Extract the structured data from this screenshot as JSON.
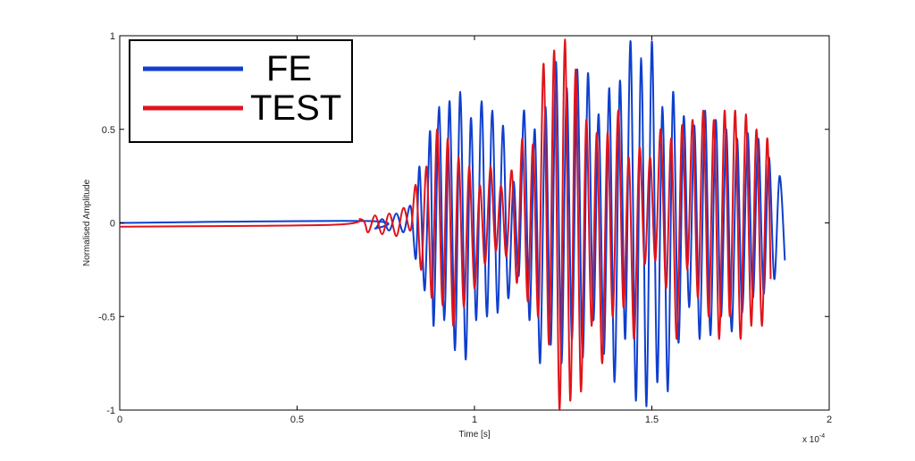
{
  "chart_data": {
    "type": "line",
    "title": "",
    "xlabel": "Time [s]",
    "ylabel": "Normalised Amplitude",
    "x_multiplier": "x 10",
    "x_multiplier_exponent": "-4",
    "xlim": [
      0,
      2
    ],
    "ylim": [
      -1,
      1
    ],
    "x_ticks": [
      0,
      0.5,
      1,
      1.5,
      2
    ],
    "x_tick_labels": [
      "0",
      "0.5",
      "1",
      "1.5",
      "2"
    ],
    "y_ticks": [
      -1,
      -0.5,
      0,
      0.5,
      1
    ],
    "y_tick_labels": [
      "-1",
      "-0.5",
      "0",
      "0.5",
      "1"
    ],
    "grid": false,
    "legend_position": "top-left",
    "series": [
      {
        "name": "FE",
        "color": "#0e3fcf",
        "x": [
          0,
          0.7,
          0.72,
          0.74,
          0.76,
          0.78,
          0.8,
          0.82,
          0.835,
          0.845,
          0.86,
          0.875,
          0.885,
          0.9,
          0.915,
          0.93,
          0.945,
          0.96,
          0.975,
          0.99,
          1.005,
          1.02,
          1.035,
          1.05,
          1.065,
          1.08,
          1.095,
          1.11,
          1.125,
          1.14,
          1.155,
          1.17,
          1.185,
          1.2,
          1.215,
          1.23,
          1.245,
          1.26,
          1.275,
          1.29,
          1.305,
          1.32,
          1.335,
          1.35,
          1.365,
          1.38,
          1.395,
          1.41,
          1.425,
          1.44,
          1.455,
          1.47,
          1.485,
          1.5,
          1.515,
          1.53,
          1.545,
          1.56,
          1.575,
          1.59,
          1.605,
          1.62,
          1.635,
          1.65,
          1.665,
          1.68,
          1.695,
          1.71,
          1.725,
          1.74,
          1.755,
          1.77,
          1.785,
          1.8,
          1.815,
          1.83,
          1.845,
          1.86,
          1.875
        ],
        "y": [
          0,
          0.01,
          -0.03,
          0.02,
          -0.04,
          0.05,
          -0.05,
          0.09,
          -0.19,
          0.3,
          -0.36,
          0.49,
          -0.55,
          0.62,
          -0.52,
          0.65,
          -0.68,
          0.7,
          -0.73,
          0.56,
          -0.52,
          0.65,
          -0.5,
          0.6,
          -0.48,
          0.52,
          -0.4,
          0.22,
          -0.28,
          0.6,
          -0.52,
          0.5,
          -0.75,
          0.62,
          -0.65,
          0.86,
          -0.75,
          0.72,
          -0.62,
          0.82,
          -0.72,
          0.8,
          -0.52,
          0.58,
          -0.7,
          0.72,
          -0.85,
          0.76,
          -0.62,
          0.97,
          -0.95,
          0.88,
          -0.98,
          0.97,
          -0.85,
          0.62,
          -0.9,
          0.7,
          -0.64,
          0.57,
          -0.45,
          0.52,
          -0.62,
          0.6,
          -0.6,
          0.55,
          -0.5,
          0.5,
          -0.58,
          0.45,
          -0.48,
          0.48,
          -0.4,
          0.45,
          -0.38,
          0.35,
          -0.3,
          0.25,
          -0.2
        ]
      },
      {
        "name": "TEST",
        "color": "#e0141b",
        "x": [
          0,
          0.6,
          0.68,
          0.7,
          0.72,
          0.74,
          0.76,
          0.78,
          0.8,
          0.82,
          0.835,
          0.85,
          0.865,
          0.88,
          0.895,
          0.91,
          0.925,
          0.94,
          0.955,
          0.97,
          0.985,
          1.0,
          1.015,
          1.03,
          1.045,
          1.06,
          1.075,
          1.09,
          1.105,
          1.12,
          1.135,
          1.15,
          1.165,
          1.18,
          1.195,
          1.21,
          1.225,
          1.24,
          1.255,
          1.27,
          1.285,
          1.3,
          1.315,
          1.33,
          1.345,
          1.36,
          1.375,
          1.39,
          1.405,
          1.42,
          1.435,
          1.45,
          1.465,
          1.48,
          1.495,
          1.51,
          1.525,
          1.54,
          1.555,
          1.57,
          1.585,
          1.6,
          1.615,
          1.63,
          1.645,
          1.66,
          1.675,
          1.69,
          1.705,
          1.72,
          1.735,
          1.75,
          1.765,
          1.78,
          1.795,
          1.81,
          1.825,
          1.835
        ],
        "y": [
          -0.02,
          -0.01,
          0.02,
          -0.05,
          0.04,
          -0.06,
          0.05,
          -0.07,
          0.08,
          -0.04,
          0.2,
          -0.25,
          0.3,
          -0.4,
          0.5,
          -0.44,
          0.45,
          -0.55,
          0.35,
          -0.45,
          0.3,
          -0.35,
          0.2,
          -0.22,
          0.3,
          -0.15,
          0.2,
          -0.18,
          0.28,
          -0.32,
          0.45,
          -0.42,
          0.42,
          -0.5,
          0.85,
          -0.65,
          0.92,
          -1.0,
          0.98,
          -0.95,
          0.82,
          -0.9,
          0.55,
          -0.55,
          0.48,
          -0.75,
          0.48,
          -0.5,
          0.6,
          -0.45,
          0.35,
          -0.62,
          0.4,
          -0.22,
          0.35,
          -0.2,
          0.5,
          -0.35,
          0.45,
          -0.62,
          0.52,
          -0.25,
          0.55,
          -0.4,
          0.6,
          -0.5,
          0.55,
          -0.62,
          0.6,
          -0.5,
          0.6,
          -0.62,
          0.58,
          -0.55,
          0.5,
          -0.55,
          0.45,
          -0.3
        ]
      }
    ]
  }
}
